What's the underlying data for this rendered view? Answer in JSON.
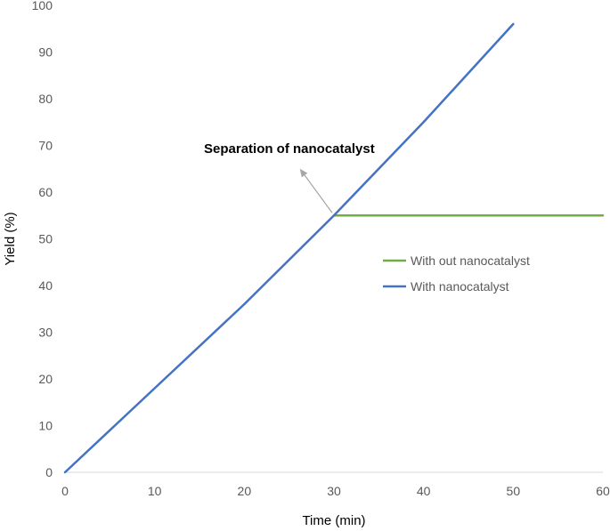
{
  "chart_data": {
    "type": "line",
    "title": "",
    "xlabel": "Time (min)",
    "ylabel": "Yield (%)",
    "xlim": [
      0,
      60
    ],
    "ylim": [
      0,
      100
    ],
    "x_ticks": [
      "0",
      "10",
      "20",
      "30",
      "40",
      "50",
      "60"
    ],
    "y_ticks": [
      "0",
      "10",
      "20",
      "30",
      "40",
      "50",
      "60",
      "70",
      "80",
      "90",
      "100"
    ],
    "grid": false,
    "legend_position": "center-right",
    "series": [
      {
        "name": "With out nanocatalyst",
        "color": "#70ad47",
        "x": [
          30,
          60
        ],
        "y": [
          55,
          55
        ]
      },
      {
        "name": "With nanocatalyst",
        "color": "#4472c4",
        "x": [
          0,
          10,
          20,
          30,
          40,
          50
        ],
        "y": [
          0,
          18,
          36,
          55,
          75,
          96
        ]
      }
    ],
    "annotation": {
      "text": "Separation of nanocatalyst",
      "arrow_from": [
        30,
        55
      ],
      "arrow_to": [
        26.2,
        65
      ]
    }
  }
}
